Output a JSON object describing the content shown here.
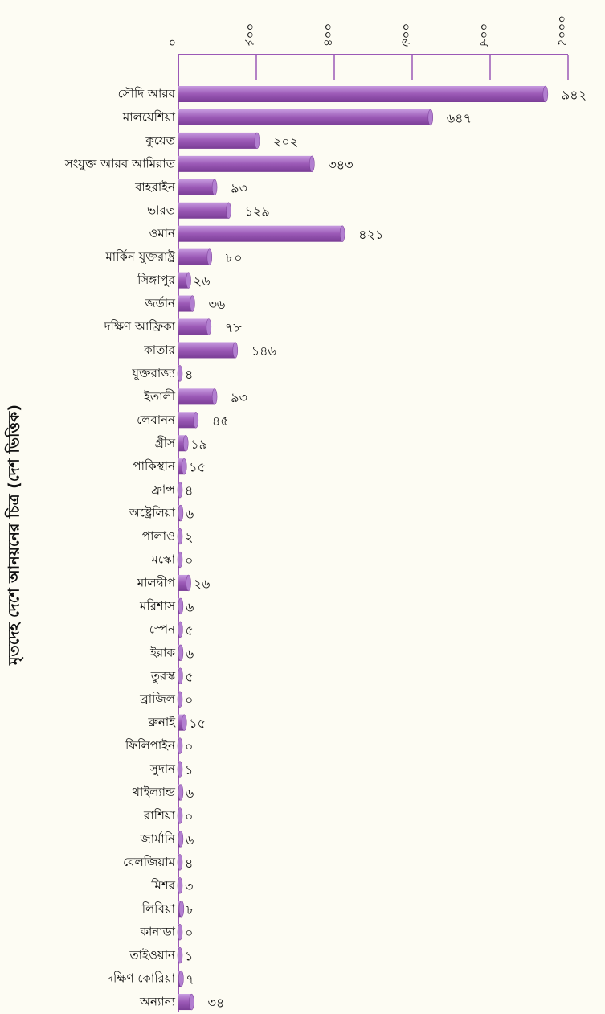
{
  "chart_data": {
    "type": "bar",
    "orientation": "horizontal",
    "y_label": "মৃতদেহ দেশে আনয়নের চিত্র (দেশ ভিত্তিক)",
    "categories": [
      "সৌদি আরব",
      "মালয়েশিয়া",
      "কুয়েত",
      "সংযুক্ত আরব আমিরাত",
      "বাহরাইন",
      "ভারত",
      "ওমান",
      "মার্কিন যুক্তরাষ্ট্র",
      "সিঙ্গাপুর",
      "জর্ডান",
      "দক্ষিণ আফ্রিকা",
      "কাতার",
      "যুক্তরাজ্য",
      "ইতালী",
      "লেবানন",
      "গ্রীস",
      "পাকিস্থান",
      "ফ্রান্স",
      "অষ্ট্রেলিয়া",
      "পালাও",
      "মস্কো",
      "মালদ্বীপ",
      "মরিশাস",
      "স্পেন",
      "ইরাক",
      "তুরস্ক",
      "ব্রাজিল",
      "ব্রুনাই",
      "ফিলিপাইন",
      "সুদান",
      "থাইল্যান্ড",
      "রাশিয়া",
      "জার্মানি",
      "বেলজিয়াম",
      "মিশর",
      "লিবিয়া",
      "কানাডা",
      "তাইওয়ান",
      "দক্ষিণ কোরিয়া",
      "অন্যান্য"
    ],
    "values": [
      942,
      647,
      202,
      343,
      93,
      129,
      421,
      80,
      26,
      36,
      78,
      146,
      4,
      93,
      45,
      19,
      15,
      4,
      6,
      2,
      0,
      26,
      6,
      5,
      6,
      5,
      0,
      15,
      0,
      1,
      6,
      0,
      6,
      4,
      3,
      8,
      0,
      1,
      7,
      34
    ],
    "value_labels": [
      "৯৪২",
      "৬৪৭",
      "২০২",
      "৩৪৩",
      "৯৩",
      "১২৯",
      "৪২১",
      "৮০",
      "২৬",
      "৩৬",
      "৭৮",
      "১৪৬",
      "৪",
      "৯৩",
      "৪৫",
      "১৯",
      "১৫",
      "৪",
      "৬",
      "২",
      "০",
      "২৬",
      "৬",
      "৫",
      "৬",
      "৫",
      "০",
      "১৫",
      "০",
      "১",
      "৬",
      "০",
      "৬",
      "৪",
      "৩",
      "৮",
      "০",
      "১",
      "৭",
      "৩৪"
    ],
    "color": "#9b59b6",
    "xlim": [
      0,
      1000
    ],
    "xticks": [
      {
        "value": 0,
        "label": "০"
      },
      {
        "value": 200,
        "label": "২০০"
      },
      {
        "value": 400,
        "label": "৪০০"
      },
      {
        "value": 600,
        "label": "৬০০"
      },
      {
        "value": 800,
        "label": "৮০০"
      },
      {
        "value": 1000,
        "label": "১০০০"
      }
    ],
    "grid": true
  }
}
